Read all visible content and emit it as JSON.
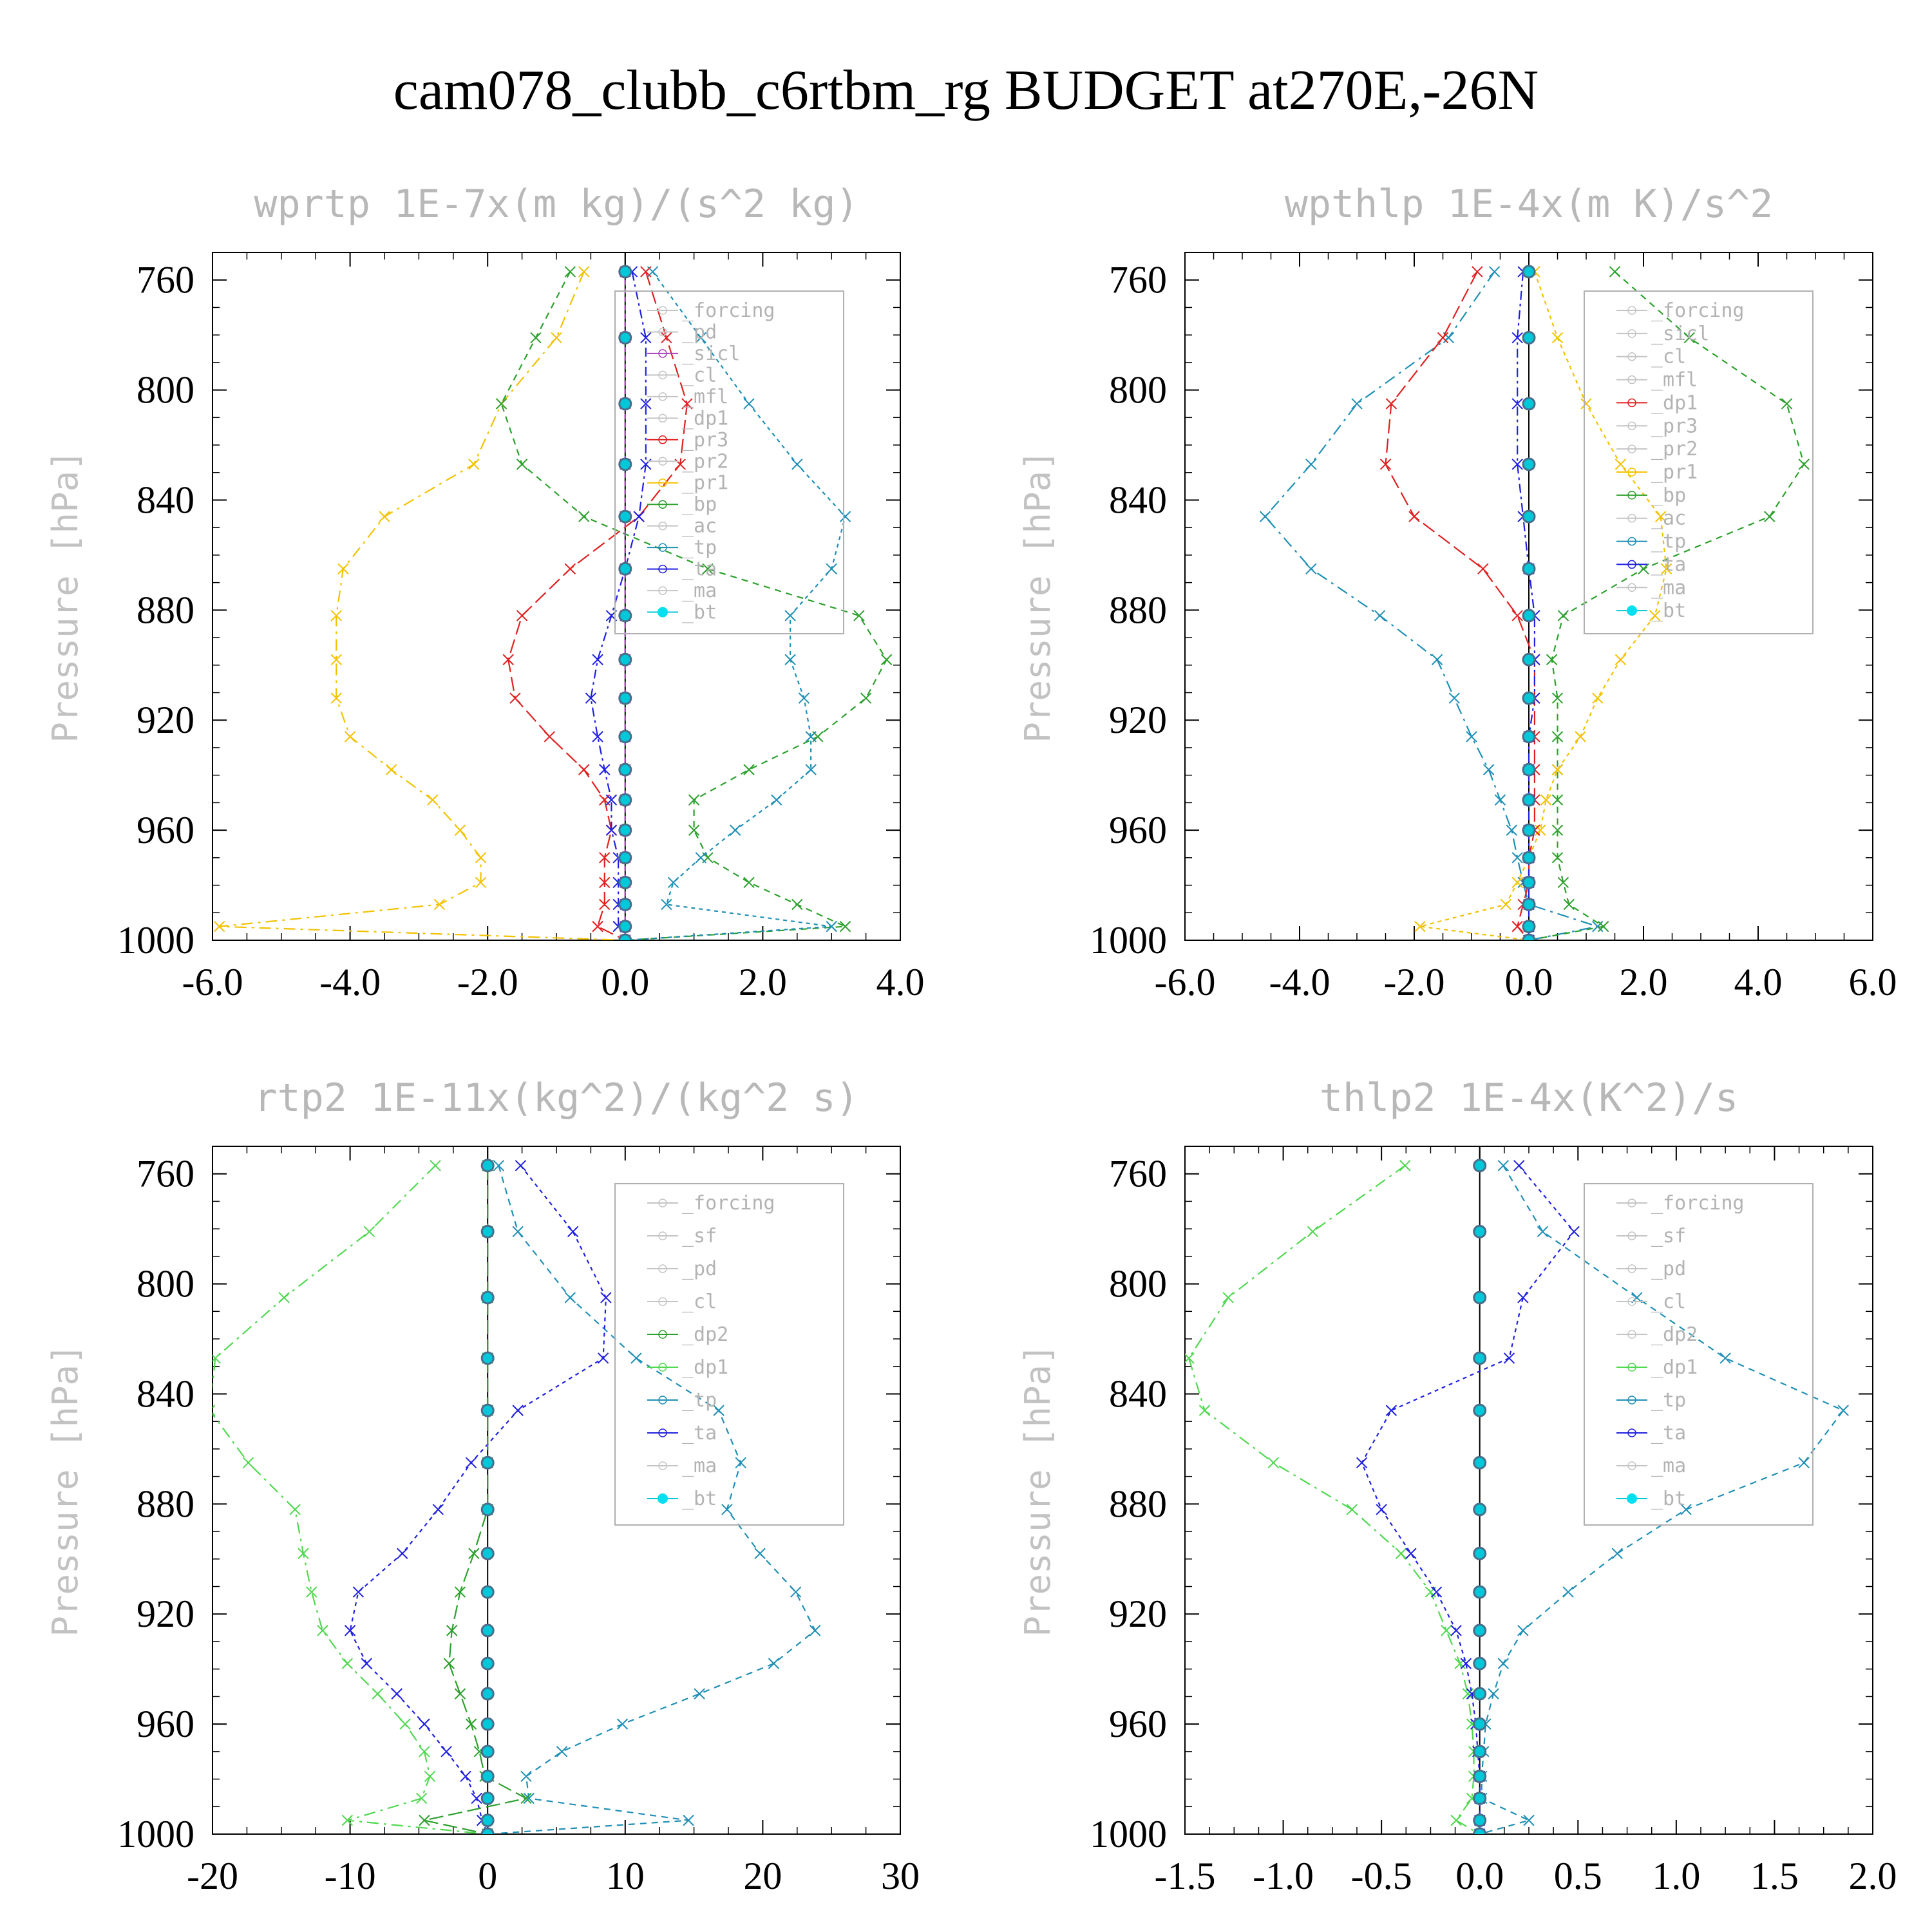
{
  "title": "cam078_clubb_c6rtbm_rg  BUDGET at270E,-26N",
  "chart_data": [
    {
      "type": "line",
      "title": "wprtp  1E-7x(m kg)/(s^2 kg)",
      "ylabel": "Pressure [hPa]",
      "xlim": [
        -6,
        4
      ],
      "ylim": [
        1000,
        750
      ],
      "xticks": [
        "-6.0",
        "-4.0",
        "-2.0",
        "0.0",
        "2.0",
        "4.0"
      ],
      "yticks": [
        "760",
        "800",
        "840",
        "880",
        "920",
        "960",
        "1000"
      ],
      "legend_position": "right",
      "legend": [
        "_forcing",
        "_pd",
        "_sicl",
        "_cl",
        "_mfl",
        "_dp1",
        "_pr3",
        "_pr2",
        "_pr1",
        "_bp",
        "_ac",
        "_tp",
        "_ta",
        "_ma",
        "_bt"
      ],
      "y": [
        757,
        781,
        805,
        827,
        846,
        865,
        882,
        898,
        912,
        926,
        938,
        949,
        960,
        970,
        979,
        987,
        995,
        1000
      ],
      "series": [
        {
          "name": "_pr1",
          "color": "#f2c200",
          "values": [
            -0.6,
            -1.0,
            -1.8,
            -2.2,
            -3.5,
            -4.1,
            -4.2,
            -4.2,
            -4.2,
            -4.0,
            -3.4,
            -2.8,
            -2.4,
            -2.1,
            -2.1,
            -2.7,
            -5.9,
            0.0
          ]
        },
        {
          "name": "_bp",
          "color": "#2ca02c",
          "values": [
            -0.8,
            -1.3,
            -1.8,
            -1.5,
            -0.6,
            1.2,
            3.4,
            3.8,
            3.5,
            2.8,
            1.8,
            1.0,
            1.0,
            1.2,
            1.8,
            2.5,
            3.2,
            0.0
          ]
        },
        {
          "name": "_tp",
          "color": "#1f8fb5",
          "values": [
            0.4,
            1.1,
            1.8,
            2.5,
            3.2,
            3.0,
            2.4,
            2.4,
            2.6,
            2.7,
            2.7,
            2.2,
            1.6,
            1.1,
            0.7,
            0.6,
            3.0,
            0.0
          ]
        },
        {
          "name": "_pr3",
          "color": "#e02020",
          "values": [
            0.3,
            0.6,
            0.9,
            0.8,
            0.2,
            -0.8,
            -1.5,
            -1.7,
            -1.6,
            -1.1,
            -0.6,
            -0.3,
            -0.2,
            -0.3,
            -0.3,
            -0.3,
            -0.4,
            0.0
          ]
        },
        {
          "name": "_ta",
          "color": "#2020e0",
          "values": [
            0.1,
            0.3,
            0.3,
            0.3,
            0.2,
            0.0,
            -0.2,
            -0.4,
            -0.5,
            -0.4,
            -0.3,
            -0.2,
            -0.2,
            -0.1,
            -0.1,
            -0.1,
            -0.1,
            0.0
          ]
        },
        {
          "name": "_sicl",
          "color": "#b040c0",
          "values": [
            0.0,
            0.0,
            0.0,
            0.0,
            0.0,
            0.0,
            0.0,
            0.0,
            0.0,
            0.0,
            0.0,
            0.0,
            0.0,
            0.0,
            0.0,
            0.0,
            0.0,
            0.0
          ]
        },
        {
          "name": "_bt",
          "color": "#00c8d8",
          "values": [
            0.0,
            0.0,
            0.0,
            0.0,
            0.0,
            0.0,
            0.0,
            0.0,
            0.0,
            0.0,
            0.0,
            0.0,
            0.0,
            0.0,
            0.0,
            0.0,
            0.0,
            0.0
          ]
        }
      ]
    },
    {
      "type": "line",
      "title": "wpthlp  1E-4x(m K)/s^2",
      "ylabel": "Pressure [hPa]",
      "xlim": [
        -6,
        6
      ],
      "ylim": [
        1000,
        750
      ],
      "xticks": [
        "-6.0",
        "-4.0",
        "-2.0",
        "0.0",
        "2.0",
        "4.0",
        "6.0"
      ],
      "yticks": [
        "760",
        "800",
        "840",
        "880",
        "920",
        "960",
        "1000"
      ],
      "legend_position": "right",
      "legend": [
        "_forcing",
        "_sicl",
        "_cl",
        "_mfl",
        "_dp1",
        "_pr3",
        "_pr2",
        "_pr1",
        "_bp",
        "_ac",
        "_tp",
        "_ta",
        "_ma",
        "_bt"
      ],
      "y": [
        757,
        781,
        805,
        827,
        846,
        865,
        882,
        898,
        912,
        926,
        938,
        949,
        960,
        970,
        979,
        987,
        995,
        1000
      ],
      "series": [
        {
          "name": "_tp",
          "color": "#1f8fb5",
          "values": [
            -0.6,
            -1.4,
            -3.0,
            -3.8,
            -4.6,
            -3.8,
            -2.6,
            -1.6,
            -1.3,
            -1.0,
            -0.7,
            -0.5,
            -0.3,
            -0.2,
            -0.1,
            0.0,
            1.2,
            0.0
          ]
        },
        {
          "name": "_bp",
          "color": "#2ca02c",
          "values": [
            1.5,
            2.8,
            4.5,
            4.8,
            4.2,
            2.0,
            0.6,
            0.4,
            0.5,
            0.5,
            0.5,
            0.5,
            0.5,
            0.5,
            0.6,
            0.7,
            1.3,
            0.0
          ]
        },
        {
          "name": "_pr1",
          "color": "#f2c200",
          "values": [
            0.1,
            0.5,
            1.0,
            1.6,
            2.3,
            2.4,
            2.2,
            1.6,
            1.2,
            0.9,
            0.5,
            0.3,
            0.2,
            0.0,
            -0.2,
            -0.4,
            -1.9,
            0.0
          ]
        },
        {
          "name": "_dp1",
          "color": "#e02020",
          "values": [
            -0.9,
            -1.5,
            -2.4,
            -2.5,
            -2.0,
            -0.8,
            -0.2,
            0.1,
            0.1,
            0.1,
            0.1,
            0.1,
            0.1,
            0.0,
            0.0,
            -0.1,
            -0.2,
            0.0
          ]
        },
        {
          "name": "_ta",
          "color": "#2020e0",
          "values": [
            -0.1,
            -0.2,
            -0.2,
            -0.2,
            -0.1,
            0.0,
            0.1,
            0.1,
            0.1,
            0.0,
            0.0,
            0.0,
            0.0,
            0.0,
            0.0,
            0.0,
            0.0,
            0.0
          ]
        },
        {
          "name": "_bt",
          "color": "#00c8d8",
          "values": [
            0.0,
            0.0,
            0.0,
            0.0,
            0.0,
            0.0,
            0.0,
            0.0,
            0.0,
            0.0,
            0.0,
            0.0,
            0.0,
            0.0,
            0.0,
            0.0,
            0.0,
            0.0
          ]
        }
      ]
    },
    {
      "type": "line",
      "title": "rtp2  1E-11x(kg^2)/(kg^2 s)",
      "ylabel": "Pressure [hPa]",
      "xlim": [
        -20,
        30
      ],
      "ylim": [
        1000,
        750
      ],
      "xticks": [
        "-20",
        "-10",
        "0",
        "10",
        "20",
        "30"
      ],
      "yticks": [
        "760",
        "800",
        "840",
        "880",
        "920",
        "960",
        "1000"
      ],
      "legend_position": "right",
      "legend": [
        "_forcing",
        "_sf",
        "_pd",
        "_cl",
        "_dp2",
        "_dp1",
        "_tp",
        "_ta",
        "_ma",
        "_bt"
      ],
      "y": [
        757,
        781,
        805,
        827,
        846,
        865,
        882,
        898,
        912,
        926,
        938,
        949,
        960,
        970,
        979,
        987,
        995,
        1000
      ],
      "series": [
        {
          "name": "_dp1",
          "color": "#50d850",
          "values": [
            -3.8,
            -8.6,
            -14.8,
            -19.8,
            -20.2,
            -17.4,
            -14.0,
            -13.4,
            -12.8,
            -12.0,
            -10.2,
            -8.0,
            -6.0,
            -4.6,
            -4.2,
            -4.8,
            -10.2,
            0.0
          ]
        },
        {
          "name": "_tp",
          "color": "#1f8fb5",
          "values": [
            0.8,
            2.2,
            6.0,
            10.8,
            16.8,
            18.4,
            17.4,
            19.8,
            22.4,
            23.8,
            20.8,
            15.4,
            9.8,
            5.4,
            2.8,
            3.0,
            14.6,
            0.0
          ]
        },
        {
          "name": "_ta",
          "color": "#2020e0",
          "values": [
            2.4,
            6.2,
            8.6,
            8.4,
            2.2,
            -1.2,
            -3.6,
            -6.2,
            -9.4,
            -10.0,
            -8.8,
            -6.6,
            -4.6,
            -3.0,
            -1.6,
            -0.8,
            -0.4,
            0.0
          ]
        },
        {
          "name": "_dp2",
          "color": "#2ca02c",
          "values": [
            0.0,
            0.0,
            0.0,
            0.0,
            0.0,
            0.0,
            0.0,
            -1.0,
            -2.0,
            -2.6,
            -2.8,
            -2.0,
            -1.2,
            -0.6,
            -0.2,
            2.8,
            -4.6,
            0.0
          ]
        },
        {
          "name": "_bt",
          "color": "#00c8d8",
          "values": [
            0.0,
            0.0,
            0.0,
            0.0,
            0.0,
            0.0,
            0.0,
            0.0,
            0.0,
            0.0,
            0.0,
            0.0,
            0.0,
            0.0,
            0.0,
            0.0,
            0.0,
            0.0
          ]
        }
      ]
    },
    {
      "type": "line",
      "title": "thlp2  1E-4x(K^2)/s",
      "ylabel": "Pressure [hPa]",
      "xlim": [
        -1.5,
        2.0
      ],
      "ylim": [
        1000,
        750
      ],
      "xticks": [
        "-1.5",
        "-1.0",
        "-0.5",
        "0.0",
        "0.5",
        "1.0",
        "1.5",
        "2.0"
      ],
      "yticks": [
        "760",
        "800",
        "840",
        "880",
        "920",
        "960",
        "1000"
      ],
      "legend_position": "right",
      "legend": [
        "_forcing",
        "_sf",
        "_pd",
        "_cl",
        "_dp2",
        "_dp1",
        "_tp",
        "_ta",
        "_ma",
        "_bt"
      ],
      "y": [
        757,
        781,
        805,
        827,
        846,
        865,
        882,
        898,
        912,
        926,
        938,
        949,
        960,
        970,
        979,
        987,
        995,
        1000
      ],
      "series": [
        {
          "name": "_dp1",
          "color": "#50d850",
          "values": [
            -0.38,
            -0.85,
            -1.28,
            -1.48,
            -1.4,
            -1.05,
            -0.65,
            -0.4,
            -0.25,
            -0.17,
            -0.1,
            -0.06,
            -0.04,
            -0.03,
            -0.03,
            -0.04,
            -0.12,
            0.0
          ]
        },
        {
          "name": "_tp",
          "color": "#1f8fb5",
          "values": [
            0.12,
            0.32,
            0.8,
            1.25,
            1.85,
            1.65,
            1.05,
            0.7,
            0.45,
            0.22,
            0.12,
            0.07,
            0.03,
            0.02,
            0.01,
            0.01,
            0.25,
            0.0
          ]
        },
        {
          "name": "_ta",
          "color": "#2020e0",
          "values": [
            0.2,
            0.48,
            0.22,
            0.15,
            -0.45,
            -0.6,
            -0.5,
            -0.35,
            -0.22,
            -0.12,
            -0.07,
            -0.04,
            -0.02,
            -0.01,
            0.0,
            0.0,
            0.0,
            0.0
          ]
        },
        {
          "name": "_bt",
          "color": "#00c8d8",
          "values": [
            0.0,
            0.0,
            0.0,
            0.0,
            0.0,
            0.0,
            0.0,
            0.0,
            0.0,
            0.0,
            0.0,
            0.0,
            0.0,
            0.0,
            0.0,
            0.0,
            0.0,
            0.0
          ]
        }
      ]
    }
  ]
}
